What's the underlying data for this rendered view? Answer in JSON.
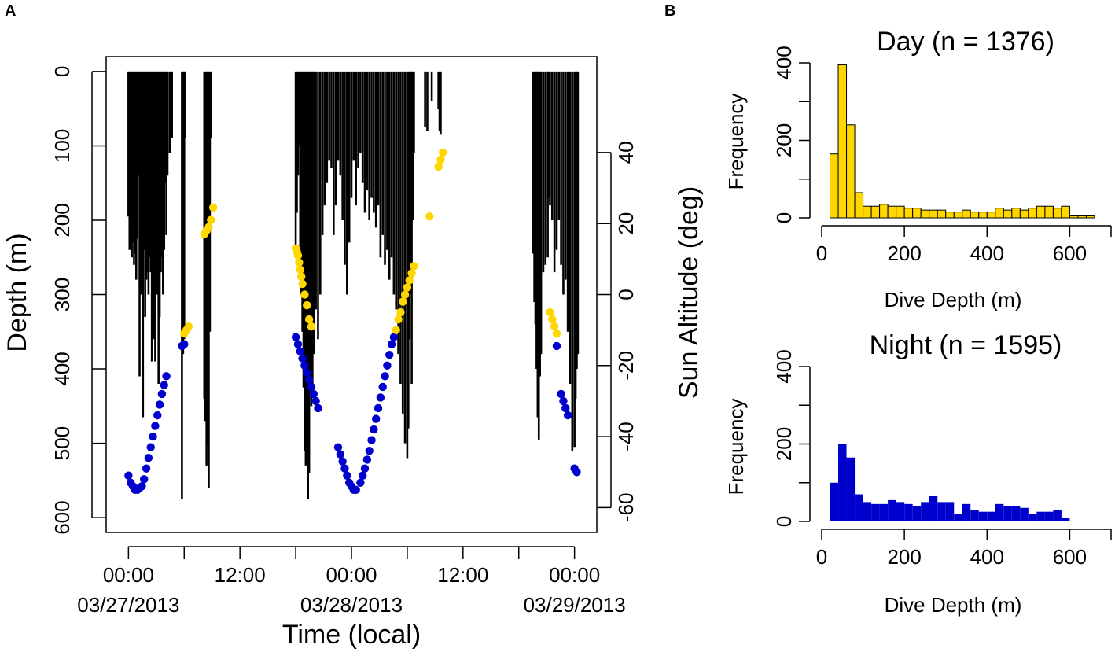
{
  "panels": {
    "a_label": "A",
    "b_label": "B"
  },
  "colors": {
    "day": "#FFD700",
    "night": "#0000CD",
    "dive": "#000000"
  },
  "chart_data": [
    {
      "id": "dive-profile",
      "type": "line",
      "xlabel": "Time (local)",
      "ylabel": "Depth (m)",
      "y2label": "Sun Altitude (deg)",
      "xlim": [
        -0.1,
        2.1
      ],
      "ylim": [
        620,
        -20
      ],
      "y2lim": [
        -67,
        67
      ],
      "x_ticks": [
        {
          "x": 0,
          "line1": "00:00",
          "line2": "03/27/2013"
        },
        {
          "x": 0.25,
          "line1": "",
          "line2": ""
        },
        {
          "x": 0.5,
          "line1": "12:00",
          "line2": ""
        },
        {
          "x": 0.75,
          "line1": "",
          "line2": ""
        },
        {
          "x": 1.0,
          "line1": "00:00",
          "line2": "03/28/2013"
        },
        {
          "x": 1.25,
          "line1": "",
          "line2": ""
        },
        {
          "x": 1.5,
          "line1": "12:00",
          "line2": ""
        },
        {
          "x": 1.75,
          "line1": "",
          "line2": ""
        },
        {
          "x": 2.0,
          "line1": "00:00",
          "line2": "03/29/2013"
        }
      ],
      "y_ticks": [
        "0",
        "100",
        "200",
        "300",
        "400",
        "500",
        "600"
      ],
      "y2_ticks": [
        "40",
        "20",
        "0",
        "-20",
        "-40",
        "-60"
      ],
      "dives": [
        [
          0.0,
          195
        ],
        [
          0.005,
          240
        ],
        [
          0.01,
          210
        ],
        [
          0.015,
          250
        ],
        [
          0.02,
          230
        ],
        [
          0.025,
          260
        ],
        [
          0.03,
          245
        ],
        [
          0.035,
          280
        ],
        [
          0.04,
          225
        ],
        [
          0.045,
          140
        ],
        [
          0.05,
          410
        ],
        [
          0.055,
          300
        ],
        [
          0.06,
          260
        ],
        [
          0.065,
          465
        ],
        [
          0.07,
          240
        ],
        [
          0.075,
          330
        ],
        [
          0.08,
          280
        ],
        [
          0.085,
          270
        ],
        [
          0.09,
          300
        ],
        [
          0.095,
          250
        ],
        [
          0.1,
          270
        ],
        [
          0.105,
          390
        ],
        [
          0.11,
          310
        ],
        [
          0.115,
          360
        ],
        [
          0.12,
          390
        ],
        [
          0.125,
          290
        ],
        [
          0.13,
          300
        ],
        [
          0.135,
          420
        ],
        [
          0.14,
          330
        ],
        [
          0.145,
          270
        ],
        [
          0.15,
          250
        ],
        [
          0.155,
          300
        ],
        [
          0.16,
          240
        ],
        [
          0.165,
          150
        ],
        [
          0.17,
          220
        ],
        [
          0.175,
          140
        ],
        [
          0.185,
          110
        ],
        [
          0.19,
          90
        ],
        [
          0.195,
          90
        ],
        [
          0.24,
          575
        ],
        [
          0.245,
          380
        ],
        [
          0.25,
          360
        ],
        [
          0.255,
          90
        ],
        [
          0.34,
          440
        ],
        [
          0.345,
          470
        ],
        [
          0.35,
          530
        ],
        [
          0.355,
          500
        ],
        [
          0.36,
          560
        ],
        [
          0.365,
          350
        ],
        [
          0.37,
          90
        ],
        [
          0.75,
          240
        ],
        [
          0.755,
          190
        ],
        [
          0.76,
          140
        ],
        [
          0.765,
          100
        ],
        [
          0.77,
          280
        ],
        [
          0.775,
          300
        ],
        [
          0.78,
          350
        ],
        [
          0.785,
          425
        ],
        [
          0.79,
          510
        ],
        [
          0.795,
          530
        ],
        [
          0.8,
          490
        ],
        [
          0.805,
          575
        ],
        [
          0.81,
          540
        ],
        [
          0.815,
          420
        ],
        [
          0.82,
          450
        ],
        [
          0.825,
          420
        ],
        [
          0.83,
          380
        ],
        [
          0.835,
          260
        ],
        [
          0.84,
          320
        ],
        [
          0.85,
          360
        ],
        [
          0.86,
          300
        ],
        [
          0.87,
          220
        ],
        [
          0.88,
          180
        ],
        [
          0.89,
          150
        ],
        [
          0.9,
          120
        ],
        [
          0.91,
          130
        ],
        [
          0.92,
          220
        ],
        [
          0.93,
          180
        ],
        [
          0.94,
          120
        ],
        [
          0.95,
          140
        ],
        [
          0.96,
          200
        ],
        [
          0.97,
          260
        ],
        [
          0.98,
          300
        ],
        [
          0.99,
          230
        ],
        [
          1.0,
          170
        ],
        [
          1.01,
          120
        ],
        [
          1.02,
          180
        ],
        [
          1.03,
          130
        ],
        [
          1.04,
          110
        ],
        [
          1.05,
          150
        ],
        [
          1.06,
          190
        ],
        [
          1.07,
          160
        ],
        [
          1.08,
          200
        ],
        [
          1.09,
          170
        ],
        [
          1.1,
          190
        ],
        [
          1.11,
          210
        ],
        [
          1.12,
          180
        ],
        [
          1.13,
          250
        ],
        [
          1.14,
          220
        ],
        [
          1.15,
          260
        ],
        [
          1.16,
          240
        ],
        [
          1.17,
          280
        ],
        [
          1.18,
          250
        ],
        [
          1.19,
          300
        ],
        [
          1.2,
          320
        ],
        [
          1.21,
          380
        ],
        [
          1.22,
          420
        ],
        [
          1.23,
          460
        ],
        [
          1.24,
          500
        ],
        [
          1.25,
          520
        ],
        [
          1.255,
          480
        ],
        [
          1.26,
          360
        ],
        [
          1.265,
          300
        ],
        [
          1.27,
          420
        ],
        [
          1.275,
          200
        ],
        [
          1.28,
          110
        ],
        [
          1.33,
          75
        ],
        [
          1.34,
          80
        ],
        [
          1.36,
          40
        ],
        [
          1.39,
          50
        ],
        [
          1.395,
          80
        ],
        [
          1.4,
          85
        ],
        [
          1.815,
          245
        ],
        [
          1.82,
          310
        ],
        [
          1.825,
          340
        ],
        [
          1.83,
          400
        ],
        [
          1.835,
          465
        ],
        [
          1.84,
          495
        ],
        [
          1.845,
          410
        ],
        [
          1.85,
          380
        ],
        [
          1.86,
          270
        ],
        [
          1.87,
          260
        ],
        [
          1.88,
          250
        ],
        [
          1.885,
          170
        ],
        [
          1.89,
          180
        ],
        [
          1.9,
          200
        ],
        [
          1.91,
          270
        ],
        [
          1.92,
          240
        ],
        [
          1.93,
          200
        ],
        [
          1.94,
          260
        ],
        [
          1.95,
          300
        ],
        [
          1.96,
          280
        ],
        [
          1.97,
          350
        ],
        [
          1.98,
          420
        ],
        [
          1.99,
          510
        ],
        [
          2.0,
          505
        ],
        [
          2.005,
          440
        ],
        [
          2.01,
          400
        ],
        [
          2.015,
          380
        ]
      ],
      "sun_night": [
        [
          0.0,
          -51
        ],
        [
          0.01,
          -53
        ],
        [
          0.02,
          -54
        ],
        [
          0.03,
          -55
        ],
        [
          0.04,
          -55
        ],
        [
          0.05,
          -54.5
        ],
        [
          0.06,
          -54
        ],
        [
          0.07,
          -52
        ],
        [
          0.08,
          -49
        ],
        [
          0.09,
          -46
        ],
        [
          0.1,
          -43
        ],
        [
          0.11,
          -40
        ],
        [
          0.12,
          -37
        ],
        [
          0.13,
          -34
        ],
        [
          0.14,
          -31
        ],
        [
          0.15,
          -28
        ],
        [
          0.16,
          -25.5
        ],
        [
          0.17,
          -23
        ],
        [
          0.24,
          -14.5
        ],
        [
          0.25,
          -14
        ],
        [
          0.75,
          -12
        ],
        [
          0.76,
          -14
        ],
        [
          0.77,
          -16
        ],
        [
          0.78,
          -18
        ],
        [
          0.79,
          -20
        ],
        [
          0.8,
          -22
        ],
        [
          0.81,
          -24
        ],
        [
          0.82,
          -26
        ],
        [
          0.83,
          -28
        ],
        [
          0.84,
          -30
        ],
        [
          0.85,
          -32
        ],
        [
          0.94,
          -43
        ],
        [
          0.95,
          -45
        ],
        [
          0.96,
          -47
        ],
        [
          0.97,
          -49
        ],
        [
          0.98,
          -51
        ],
        [
          0.99,
          -53
        ],
        [
          1.0,
          -54
        ],
        [
          1.01,
          -55
        ],
        [
          1.02,
          -55
        ],
        [
          1.04,
          -53
        ],
        [
          1.05,
          -51
        ],
        [
          1.06,
          -49
        ],
        [
          1.07,
          -46.5
        ],
        [
          1.08,
          -44
        ],
        [
          1.09,
          -41
        ],
        [
          1.1,
          -38
        ],
        [
          1.11,
          -35
        ],
        [
          1.12,
          -32
        ],
        [
          1.13,
          -29
        ],
        [
          1.14,
          -26
        ],
        [
          1.15,
          -23
        ],
        [
          1.16,
          -20
        ],
        [
          1.17,
          -17
        ],
        [
          1.18,
          -14
        ],
        [
          1.19,
          -12
        ],
        [
          1.92,
          -14.5
        ],
        [
          1.94,
          -28
        ],
        [
          1.95,
          -30
        ],
        [
          1.96,
          -32
        ],
        [
          1.97,
          -34
        ],
        [
          2.0,
          -49
        ],
        [
          2.01,
          -50
        ]
      ],
      "sun_day": [
        [
          0.25,
          -11
        ],
        [
          0.26,
          -10
        ],
        [
          0.27,
          -9
        ],
        [
          0.34,
          17
        ],
        [
          0.35,
          18
        ],
        [
          0.36,
          19
        ],
        [
          0.37,
          21
        ],
        [
          0.38,
          24.5
        ],
        [
          0.75,
          13
        ],
        [
          0.755,
          12
        ],
        [
          0.76,
          11
        ],
        [
          0.765,
          9
        ],
        [
          0.77,
          7
        ],
        [
          0.775,
          5
        ],
        [
          0.78,
          3
        ],
        [
          0.79,
          0
        ],
        [
          0.8,
          -3
        ],
        [
          0.81,
          -7
        ],
        [
          0.82,
          -9
        ],
        [
          1.2,
          -10
        ],
        [
          1.21,
          -7
        ],
        [
          1.22,
          -5
        ],
        [
          1.23,
          -2
        ],
        [
          1.24,
          0
        ],
        [
          1.25,
          2
        ],
        [
          1.26,
          4
        ],
        [
          1.27,
          6
        ],
        [
          1.28,
          8
        ],
        [
          1.35,
          22
        ],
        [
          1.39,
          36
        ],
        [
          1.4,
          38
        ],
        [
          1.41,
          40
        ],
        [
          1.89,
          -5
        ],
        [
          1.9,
          -7
        ],
        [
          1.91,
          -9
        ],
        [
          1.92,
          -11
        ]
      ]
    },
    {
      "id": "day-histogram",
      "type": "bar",
      "title": "Day (n = 1376)",
      "xlabel": "Dive Depth (m)",
      "ylabel": "Frequency",
      "xlim": [
        0,
        700
      ],
      "ylim": [
        0,
        400
      ],
      "bin_width": 20,
      "bin_start": 20,
      "x_ticks": [
        "0",
        "200",
        "400",
        "600"
      ],
      "y_ticks": [
        "0",
        "200",
        "400"
      ],
      "values": [
        165,
        395,
        240,
        65,
        30,
        30,
        35,
        30,
        30,
        25,
        25,
        20,
        20,
        20,
        15,
        15,
        20,
        15,
        15,
        15,
        25,
        20,
        25,
        20,
        25,
        30,
        30,
        25,
        30,
        5,
        5,
        5
      ]
    },
    {
      "id": "night-histogram",
      "type": "bar",
      "title": "Night (n = 1595)",
      "xlabel": "Dive Depth (m)",
      "ylabel": "Frequency",
      "xlim": [
        0,
        700
      ],
      "ylim": [
        0,
        400
      ],
      "bin_width": 20,
      "bin_start": 20,
      "x_ticks": [
        "0",
        "200",
        "400",
        "600"
      ],
      "y_ticks": [
        "0",
        "200",
        "400"
      ],
      "values": [
        100,
        200,
        165,
        70,
        50,
        45,
        45,
        55,
        50,
        45,
        40,
        50,
        65,
        50,
        50,
        20,
        45,
        30,
        25,
        25,
        45,
        40,
        40,
        35,
        20,
        25,
        25,
        30,
        10,
        2,
        2,
        2
      ]
    }
  ]
}
